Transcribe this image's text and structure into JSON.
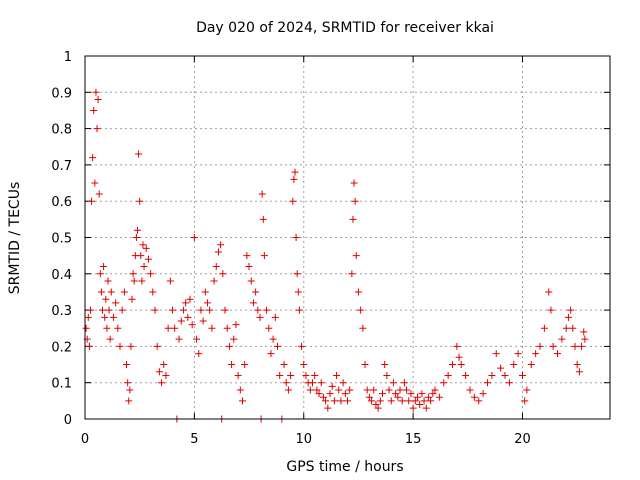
{
  "chart_data": {
    "type": "scatter",
    "title": "Day 020 of 2024, SRMTID for receiver kkai",
    "xlabel": "GPS time / hours",
    "ylabel": "SRMTID / TECUs",
    "xlim": [
      0,
      24
    ],
    "ylim": [
      0,
      1
    ],
    "xticks": [
      0,
      5,
      10,
      15,
      20
    ],
    "xtick_labels": [
      "0",
      "5",
      "10",
      "15",
      "20"
    ],
    "yticks": [
      0,
      0.1,
      0.2,
      0.3,
      0.4,
      0.5,
      0.6,
      0.7,
      0.8,
      0.9,
      1
    ],
    "ytick_labels": [
      "0",
      "0.1",
      "0.2",
      "0.3",
      "0.4",
      "0.5",
      "0.6",
      "0.7",
      "0.8",
      "0.9",
      "1"
    ],
    "grid": true,
    "marker": "+",
    "marker_color": "#e00000",
    "series": [
      {
        "name": "SRMTID",
        "points": [
          [
            0.05,
            0.25
          ],
          [
            0.1,
            0.22
          ],
          [
            0.15,
            0.28
          ],
          [
            0.2,
            0.2
          ],
          [
            0.25,
            0.3
          ],
          [
            0.3,
            0.6
          ],
          [
            0.35,
            0.72
          ],
          [
            0.4,
            0.85
          ],
          [
            0.45,
            0.65
          ],
          [
            0.5,
            0.9
          ],
          [
            0.55,
            0.8
          ],
          [
            0.6,
            0.88
          ],
          [
            0.65,
            0.62
          ],
          [
            0.7,
            0.4
          ],
          [
            0.75,
            0.35
          ],
          [
            0.8,
            0.3
          ],
          [
            0.85,
            0.42
          ],
          [
            0.9,
            0.28
          ],
          [
            0.95,
            0.33
          ],
          [
            1.0,
            0.25
          ],
          [
            1.05,
            0.38
          ],
          [
            1.1,
            0.3
          ],
          [
            1.15,
            0.22
          ],
          [
            1.2,
            0.35
          ],
          [
            1.3,
            0.28
          ],
          [
            1.4,
            0.32
          ],
          [
            1.5,
            0.25
          ],
          [
            1.6,
            0.2
          ],
          [
            1.7,
            0.3
          ],
          [
            1.8,
            0.35
          ],
          [
            1.9,
            0.15
          ],
          [
            1.95,
            0.1
          ],
          [
            2.0,
            0.05
          ],
          [
            2.05,
            0.08
          ],
          [
            2.1,
            0.2
          ],
          [
            2.15,
            0.33
          ],
          [
            2.2,
            0.4
          ],
          [
            2.25,
            0.38
          ],
          [
            2.3,
            0.45
          ],
          [
            2.35,
            0.5
          ],
          [
            2.4,
            0.52
          ],
          [
            2.45,
            0.73
          ],
          [
            2.5,
            0.6
          ],
          [
            2.55,
            0.45
          ],
          [
            2.6,
            0.38
          ],
          [
            2.65,
            0.48
          ],
          [
            2.7,
            0.42
          ],
          [
            2.8,
            0.47
          ],
          [
            2.9,
            0.44
          ],
          [
            3.0,
            0.4
          ],
          [
            3.1,
            0.35
          ],
          [
            3.2,
            0.3
          ],
          [
            3.3,
            0.2
          ],
          [
            3.4,
            0.13
          ],
          [
            3.5,
            0.1
          ],
          [
            3.6,
            0.15
          ],
          [
            3.7,
            0.12
          ],
          [
            3.8,
            0.25
          ],
          [
            3.9,
            0.38
          ],
          [
            4.0,
            0.3
          ],
          [
            4.1,
            0.25
          ],
          [
            4.2,
            0.0
          ],
          [
            4.3,
            0.22
          ],
          [
            4.4,
            0.27
          ],
          [
            4.5,
            0.3
          ],
          [
            4.6,
            0.32
          ],
          [
            4.7,
            0.28
          ],
          [
            4.8,
            0.33
          ],
          [
            4.9,
            0.26
          ],
          [
            5.0,
            0.5
          ],
          [
            5.1,
            0.22
          ],
          [
            5.2,
            0.18
          ],
          [
            5.3,
            0.3
          ],
          [
            5.4,
            0.27
          ],
          [
            5.5,
            0.35
          ],
          [
            5.6,
            0.32
          ],
          [
            5.7,
            0.3
          ],
          [
            5.8,
            0.25
          ],
          [
            5.9,
            0.38
          ],
          [
            6.0,
            0.42
          ],
          [
            6.1,
            0.46
          ],
          [
            6.2,
            0.48
          ],
          [
            6.25,
            0.0
          ],
          [
            6.3,
            0.4
          ],
          [
            6.4,
            0.3
          ],
          [
            6.5,
            0.25
          ],
          [
            6.6,
            0.2
          ],
          [
            6.7,
            0.15
          ],
          [
            6.8,
            0.22
          ],
          [
            6.9,
            0.26
          ],
          [
            7.0,
            0.12
          ],
          [
            7.1,
            0.08
          ],
          [
            7.2,
            0.05
          ],
          [
            7.3,
            0.15
          ],
          [
            7.4,
            0.45
          ],
          [
            7.5,
            0.42
          ],
          [
            7.6,
            0.38
          ],
          [
            7.7,
            0.32
          ],
          [
            7.8,
            0.35
          ],
          [
            7.9,
            0.3
          ],
          [
            8.0,
            0.28
          ],
          [
            8.05,
            0.0
          ],
          [
            8.1,
            0.62
          ],
          [
            8.15,
            0.55
          ],
          [
            8.2,
            0.45
          ],
          [
            8.3,
            0.3
          ],
          [
            8.4,
            0.25
          ],
          [
            8.5,
            0.18
          ],
          [
            8.6,
            0.22
          ],
          [
            8.7,
            0.28
          ],
          [
            8.8,
            0.2
          ],
          [
            8.9,
            0.12
          ],
          [
            9.0,
            0.0
          ],
          [
            9.1,
            0.15
          ],
          [
            9.2,
            0.1
          ],
          [
            9.3,
            0.08
          ],
          [
            9.4,
            0.12
          ],
          [
            9.5,
            0.6
          ],
          [
            9.55,
            0.66
          ],
          [
            9.6,
            0.68
          ],
          [
            9.65,
            0.5
          ],
          [
            9.7,
            0.4
          ],
          [
            9.75,
            0.35
          ],
          [
            9.8,
            0.3
          ],
          [
            9.9,
            0.2
          ],
          [
            10.0,
            0.15
          ],
          [
            10.1,
            0.12
          ],
          [
            10.2,
            0.1
          ],
          [
            10.3,
            0.08
          ],
          [
            10.4,
            0.1
          ],
          [
            10.5,
            0.12
          ],
          [
            10.6,
            0.08
          ],
          [
            10.7,
            0.07
          ],
          [
            10.8,
            0.1
          ],
          [
            10.9,
            0.06
          ],
          [
            11.0,
            0.05
          ],
          [
            11.1,
            0.03
          ],
          [
            11.2,
            0.07
          ],
          [
            11.3,
            0.09
          ],
          [
            11.4,
            0.05
          ],
          [
            11.5,
            0.12
          ],
          [
            11.6,
            0.08
          ],
          [
            11.7,
            0.05
          ],
          [
            11.8,
            0.1
          ],
          [
            11.9,
            0.07
          ],
          [
            12.0,
            0.05
          ],
          [
            12.1,
            0.08
          ],
          [
            12.2,
            0.4
          ],
          [
            12.25,
            0.55
          ],
          [
            12.3,
            0.65
          ],
          [
            12.35,
            0.6
          ],
          [
            12.4,
            0.45
          ],
          [
            12.5,
            0.35
          ],
          [
            12.6,
            0.3
          ],
          [
            12.7,
            0.25
          ],
          [
            12.8,
            0.15
          ],
          [
            12.9,
            0.08
          ],
          [
            13.0,
            0.06
          ],
          [
            13.1,
            0.05
          ],
          [
            13.2,
            0.08
          ],
          [
            13.3,
            0.04
          ],
          [
            13.4,
            0.03
          ],
          [
            13.5,
            0.05
          ],
          [
            13.6,
            0.07
          ],
          [
            13.7,
            0.15
          ],
          [
            13.8,
            0.12
          ],
          [
            13.9,
            0.08
          ],
          [
            14.0,
            0.05
          ],
          [
            14.1,
            0.1
          ],
          [
            14.2,
            0.07
          ],
          [
            14.3,
            0.06
          ],
          [
            14.4,
            0.08
          ],
          [
            14.5,
            0.05
          ],
          [
            14.6,
            0.1
          ],
          [
            14.7,
            0.08
          ],
          [
            14.8,
            0.05
          ],
          [
            14.9,
            0.07
          ],
          [
            15.0,
            0.03
          ],
          [
            15.1,
            0.05
          ],
          [
            15.2,
            0.06
          ],
          [
            15.3,
            0.04
          ],
          [
            15.4,
            0.07
          ],
          [
            15.5,
            0.05
          ],
          [
            15.6,
            0.03
          ],
          [
            15.7,
            0.06
          ],
          [
            15.8,
            0.05
          ],
          [
            15.9,
            0.07
          ],
          [
            16.0,
            0.08
          ],
          [
            16.2,
            0.06
          ],
          [
            16.4,
            0.1
          ],
          [
            16.6,
            0.12
          ],
          [
            16.8,
            0.15
          ],
          [
            17.0,
            0.2
          ],
          [
            17.1,
            0.17
          ],
          [
            17.2,
            0.15
          ],
          [
            17.4,
            0.12
          ],
          [
            17.6,
            0.08
          ],
          [
            17.8,
            0.06
          ],
          [
            18.0,
            0.05
          ],
          [
            18.2,
            0.07
          ],
          [
            18.4,
            0.1
          ],
          [
            18.6,
            0.12
          ],
          [
            18.8,
            0.18
          ],
          [
            19.0,
            0.14
          ],
          [
            19.2,
            0.12
          ],
          [
            19.4,
            0.1
          ],
          [
            19.6,
            0.15
          ],
          [
            19.8,
            0.18
          ],
          [
            20.0,
            0.12
          ],
          [
            20.1,
            0.05
          ],
          [
            20.2,
            0.08
          ],
          [
            20.4,
            0.15
          ],
          [
            20.6,
            0.18
          ],
          [
            20.8,
            0.2
          ],
          [
            21.0,
            0.25
          ],
          [
            21.2,
            0.35
          ],
          [
            21.3,
            0.3
          ],
          [
            21.4,
            0.2
          ],
          [
            21.6,
            0.18
          ],
          [
            21.8,
            0.22
          ],
          [
            22.0,
            0.25
          ],
          [
            22.1,
            0.28
          ],
          [
            22.2,
            0.3
          ],
          [
            22.3,
            0.25
          ],
          [
            22.4,
            0.2
          ],
          [
            22.5,
            0.15
          ],
          [
            22.6,
            0.13
          ],
          [
            22.7,
            0.2
          ],
          [
            22.8,
            0.24
          ],
          [
            22.85,
            0.22
          ]
        ]
      }
    ]
  }
}
